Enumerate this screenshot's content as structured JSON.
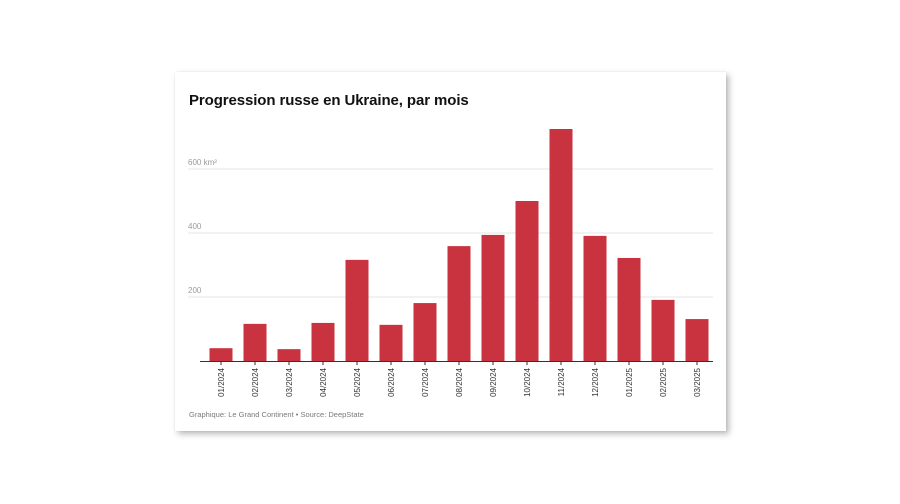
{
  "chart_data": {
    "type": "bar",
    "title": "Progression russe en Ukraine, par mois",
    "xlabel": "",
    "ylabel": "",
    "y_unit_label": "km²",
    "ylim": [
      0,
      730
    ],
    "yticks": [
      200,
      400,
      600
    ],
    "ytick_labels": [
      "200",
      "400",
      "600 km²"
    ],
    "grid": true,
    "legend": "none",
    "bar_color": "#c8333f",
    "categories": [
      "01/2024",
      "02/2024",
      "03/2024",
      "04/2024",
      "05/2024",
      "06/2024",
      "07/2024",
      "08/2024",
      "09/2024",
      "10/2024",
      "11/2024",
      "12/2024",
      "01/2025",
      "02/2025",
      "03/2025"
    ],
    "values": [
      40,
      116,
      37,
      119,
      316,
      113,
      181,
      359,
      394,
      500,
      725,
      391,
      322,
      191,
      131
    ],
    "source": "Graphique: Le Grand Continent • Source: DeepState"
  }
}
